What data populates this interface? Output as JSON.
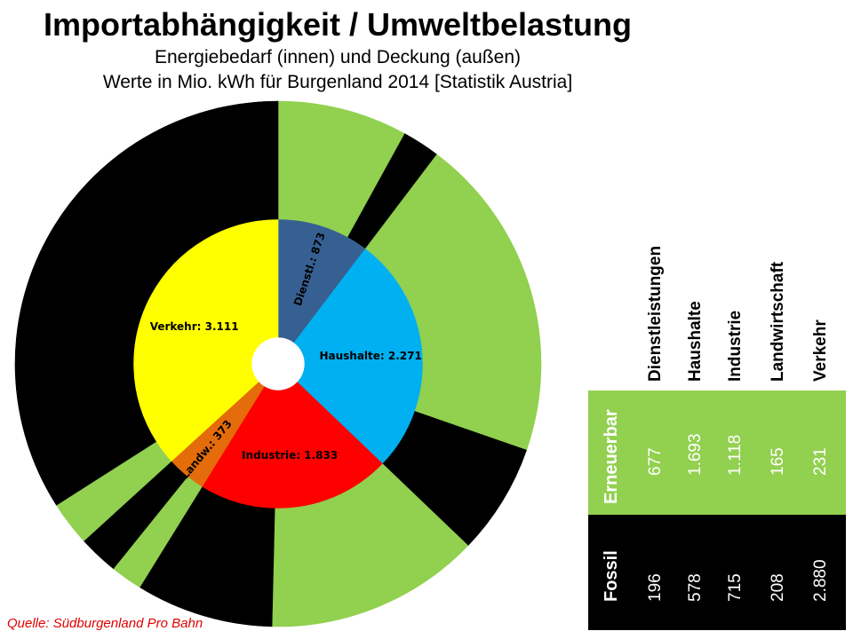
{
  "title": "Importabhängigkeit / Umweltbelastung",
  "subtitle1": "Energiebedarf (innen) und Deckung (außen)",
  "subtitle2": "Werte in Mio. kWh für Burgenland 2014 [Statistik Austria]",
  "source": "Quelle: Südburgenland Pro Bahn",
  "chart_data": {
    "type": "pie",
    "inner": {
      "categories": [
        "Dienstl.",
        "Haushalte",
        "Industrie",
        "Landw.",
        "Verkehr"
      ],
      "values": [
        873,
        2271,
        1833,
        373,
        3111
      ],
      "labels": [
        "Dienstl.:  873",
        "Haushalte:  2.271",
        "Industrie:  1.833",
        "Landw.:  373",
        "Verkehr:  3.111"
      ],
      "colors": [
        "#376092",
        "#00b0f0",
        "#ff0000",
        "#e46c0a",
        "#ffff00"
      ]
    },
    "outer": {
      "series": [
        {
          "name": "Erneuerbar",
          "color": "#92d050",
          "values": [
            677,
            1693,
            1118,
            165,
            231
          ]
        },
        {
          "name": "Fossil",
          "color": "#000000",
          "values": [
            196,
            578,
            715,
            208,
            2880
          ]
        }
      ]
    }
  },
  "table": {
    "columns": [
      "Dienstleistungen",
      "Haushalte",
      "Industrie",
      "Landwirtschaft",
      "Verkehr"
    ],
    "rows": [
      {
        "label": "Erneuerbar",
        "values": [
          "677",
          "1.693",
          "1.118",
          "165",
          "231"
        ]
      },
      {
        "label": "Fossil",
        "values": [
          "196",
          "578",
          "715",
          "208",
          "2.880"
        ]
      }
    ]
  }
}
